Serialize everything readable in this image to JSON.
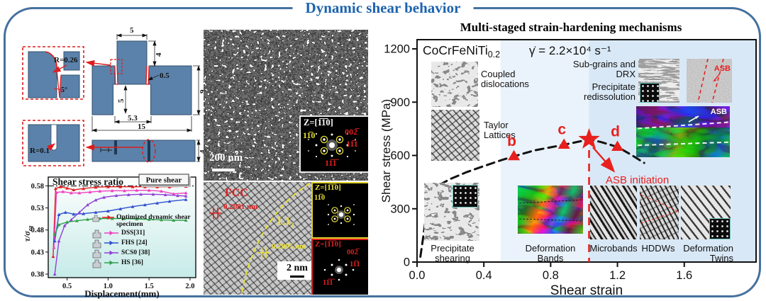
{
  "figure": {
    "title": "Dynamic shear behavior"
  },
  "specimen_drawing": {
    "detail_top": {
      "r": "R=0.26",
      "angle": "5°"
    },
    "detail_bottom": {
      "r": "R=0.1"
    },
    "dims": {
      "tab_w": "5",
      "tab_h": "4",
      "slot": "0.5",
      "body_h": "9",
      "gap_d": "5",
      "gap_w": "5.3",
      "total_w": "15",
      "side_h": "4"
    }
  },
  "tem": {
    "scale_top": "200 nm",
    "scale_bottom": "2 nm",
    "fcc": "FCC",
    "d_fcc": "0.2081 nm",
    "l12_base": "L1",
    "l12_sub": "2",
    "d_l12": "0.2095 nm",
    "saed": {
      "zone": "Z=[1̅1̅0]",
      "s110": "11̅0",
      "s002": "002̅",
      "s111a": "11̅1",
      "s111b": "11̅1̅"
    },
    "fft_y": {
      "zone": "Z=[1̅1̅0]",
      "s110": "11̅0"
    },
    "fft_r": {
      "zone": "Z=[1̅1̅0]",
      "s002": "002̅",
      "s111a": "11̅1",
      "s111b": "11̅1̅"
    }
  },
  "chart_data": [
    {
      "type": "line",
      "title": "Shear stress ratio",
      "xlabel": "Displacement(mm)",
      "ylabel_base": "τ/σ",
      "ylabel_sub": "eq",
      "xlim": [
        0.27,
        2.07
      ],
      "ylim": [
        0.372,
        0.6
      ],
      "xticks": [
        "0.5",
        "1.0",
        "1.5",
        "2.0"
      ],
      "yticks": [
        "0.38",
        "0.43",
        "0.48",
        "0.53",
        "0.58"
      ],
      "ref_line": {
        "y": 0.58,
        "label": "Pure shear"
      },
      "legend_position": "lower right",
      "series": [
        {
          "name": "Optimized dynamic shear specimen",
          "color": "#e32022",
          "points": [
            [
              0.33,
              0.42
            ],
            [
              0.36,
              0.574
            ],
            [
              0.42,
              0.578
            ],
            [
              0.5,
              0.575
            ],
            [
              0.58,
              0.571
            ],
            [
              0.7,
              0.574
            ],
            [
              0.85,
              0.577
            ],
            [
              1.0,
              0.578
            ],
            [
              1.15,
              0.578
            ],
            [
              1.3,
              0.578
            ],
            [
              1.45,
              0.578
            ],
            [
              1.6,
              0.578
            ],
            [
              1.75,
              0.578
            ],
            [
              1.95,
              0.579
            ]
          ]
        },
        {
          "name": "DSS[31]",
          "color": "#f040c0",
          "points": [
            [
              0.34,
              0.44
            ],
            [
              0.37,
              0.565
            ],
            [
              0.45,
              0.567
            ],
            [
              0.55,
              0.564
            ],
            [
              0.65,
              0.564
            ],
            [
              0.78,
              0.566
            ],
            [
              0.9,
              0.568
            ],
            [
              1.05,
              0.569
            ],
            [
              1.2,
              0.569
            ],
            [
              1.35,
              0.57
            ],
            [
              1.5,
              0.57
            ],
            [
              1.65,
              0.568
            ],
            [
              1.8,
              0.562
            ],
            [
              1.95,
              0.564
            ]
          ]
        },
        {
          "name": "FHS [24]",
          "color": "#2f4fd0",
          "points": [
            [
              0.35,
              0.455
            ],
            [
              0.4,
              0.515
            ],
            [
              0.48,
              0.52
            ],
            [
              0.58,
              0.516
            ],
            [
              0.7,
              0.517
            ],
            [
              0.85,
              0.52
            ],
            [
              1.0,
              0.523
            ],
            [
              1.15,
              0.528
            ],
            [
              1.3,
              0.533
            ],
            [
              1.45,
              0.537
            ],
            [
              1.6,
              0.541
            ],
            [
              1.75,
              0.545
            ],
            [
              1.95,
              0.549
            ]
          ]
        },
        {
          "name": "SCS0 [38]",
          "color": "#8f3fd6",
          "points": [
            [
              0.35,
              0.38
            ],
            [
              0.4,
              0.455
            ],
            [
              0.47,
              0.49
            ],
            [
              0.55,
              0.503
            ],
            [
              0.65,
              0.52
            ],
            [
              0.75,
              0.537
            ],
            [
              0.85,
              0.548
            ],
            [
              0.95,
              0.554
            ],
            [
              1.1,
              0.558
            ],
            [
              1.25,
              0.56
            ],
            [
              1.4,
              0.561
            ],
            [
              1.55,
              0.561
            ],
            [
              1.7,
              0.56
            ],
            [
              1.85,
              0.558
            ],
            [
              1.95,
              0.557
            ]
          ]
        },
        {
          "name": "HS [36]",
          "color": "#2fa04a",
          "points": [
            [
              0.35,
              0.47
            ],
            [
              0.4,
              0.492
            ],
            [
              0.5,
              0.498
            ],
            [
              0.62,
              0.501
            ],
            [
              0.75,
              0.504
            ],
            [
              0.9,
              0.506
            ],
            [
              1.05,
              0.506
            ],
            [
              1.2,
              0.506
            ],
            [
              1.35,
              0.505
            ],
            [
              1.5,
              0.504
            ],
            [
              1.65,
              0.503
            ],
            [
              1.8,
              0.502
            ],
            [
              1.95,
              0.502
            ]
          ]
        }
      ]
    },
    {
      "type": "line",
      "title": "Multi-staged strain-hardening mechanisms",
      "alloy_base": "CoCrFeNiTi",
      "alloy_sub": "0.2",
      "strain_rate": "γ̇ = 2.2×10⁴ s⁻¹",
      "xlabel": "Shear strain",
      "ylabel": "Shear stress (MPa)",
      "xlim": [
        0,
        2.03
      ],
      "ylim": [
        0,
        1250
      ],
      "xticks": [
        "0.0",
        "0.4",
        "0.8",
        "1.2",
        "1.6"
      ],
      "yticks": [
        "0",
        "300",
        "600",
        "900",
        "1200"
      ],
      "curve": {
        "style": "dashed",
        "color": "#111111",
        "points": [
          [
            0.02,
            30
          ],
          [
            0.04,
            160
          ],
          [
            0.06,
            300
          ],
          [
            0.09,
            390
          ],
          [
            0.13,
            432
          ],
          [
            0.2,
            468
          ],
          [
            0.3,
            507
          ],
          [
            0.4,
            540
          ],
          [
            0.5,
            572
          ],
          [
            0.58,
            595
          ],
          [
            0.7,
            628
          ],
          [
            0.8,
            646
          ],
          [
            0.88,
            660
          ],
          [
            0.95,
            674
          ],
          [
            1.03,
            690
          ],
          [
            1.1,
            676
          ],
          [
            1.2,
            648
          ],
          [
            1.28,
            605
          ],
          [
            1.36,
            558
          ]
        ]
      },
      "markers": [
        {
          "label": "b",
          "x": 0.58,
          "y": 595,
          "shape": "triangle"
        },
        {
          "label": "c",
          "x": 0.88,
          "y": 660,
          "shape": "triangle"
        },
        {
          "label": "",
          "x": 1.03,
          "y": 690,
          "shape": "star"
        },
        {
          "label": "d",
          "x": 1.2,
          "y": 648,
          "shape": "triangle"
        }
      ],
      "marker_color": "#e8201e",
      "asb_line_x": 1.03,
      "stage_bands": [
        {
          "from": 0.5,
          "to": 1.03,
          "color": "#eaf3fb"
        },
        {
          "from": 1.03,
          "to": 2.03,
          "color": "#d9e8f6"
        }
      ],
      "labels": {
        "coupled": "Coupled dislocations",
        "taylor": "Taylor Lattices",
        "precip_shear": "Precipitate shearing",
        "deform_bands": "Deformation Bands",
        "microbands": "Microbands",
        "hddws": "HDDWs",
        "twins": "Deformation Twins",
        "subgrains": "Sub-grains and DRX",
        "redissolution": "Precipitate redissolution",
        "asb_sem": "ASB",
        "asb_ebsd": "ASB",
        "asb_initiation": "ASB initiation"
      }
    }
  ]
}
